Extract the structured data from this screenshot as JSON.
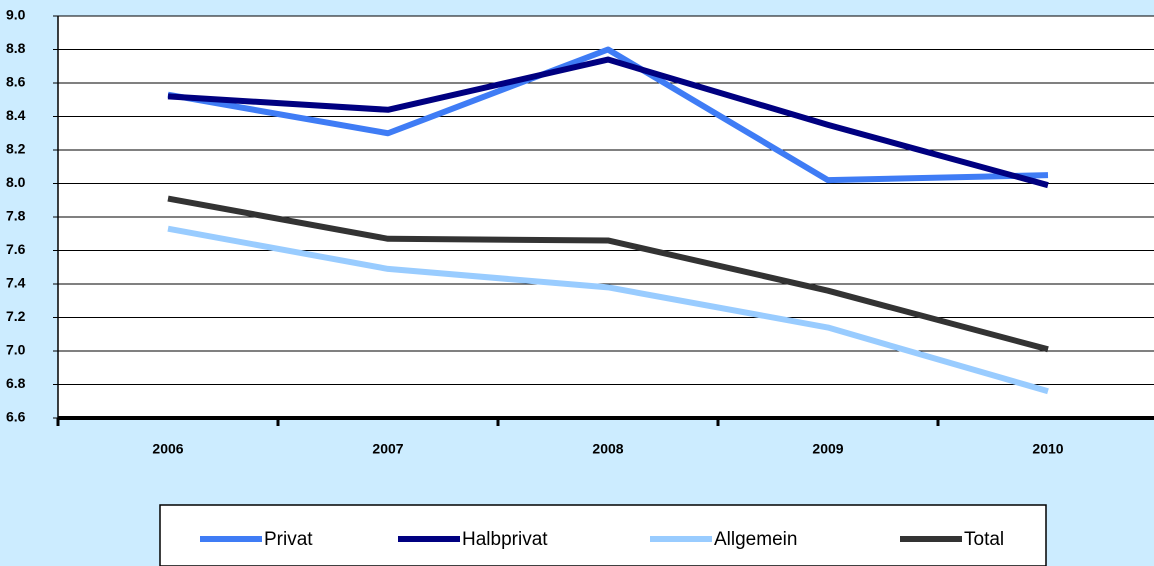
{
  "chart_data": {
    "type": "line",
    "categories": [
      "2006",
      "2007",
      "2008",
      "2009",
      "2010"
    ],
    "series": [
      {
        "name": "Privat",
        "color": "#3f7cf5",
        "values": [
          8.53,
          8.3,
          8.8,
          8.02,
          8.05
        ]
      },
      {
        "name": "Halbprivat",
        "color": "#000080",
        "values": [
          8.52,
          8.44,
          8.74,
          8.35,
          7.99
        ]
      },
      {
        "name": "Allgemein",
        "color": "#99ccff",
        "values": [
          7.73,
          7.49,
          7.38,
          7.14,
          6.76
        ]
      },
      {
        "name": "Total",
        "color": "#333333",
        "values": [
          7.91,
          7.67,
          7.66,
          7.36,
          7.01
        ]
      }
    ],
    "ylim": [
      6.6,
      9.0
    ],
    "yticks": [
      6.6,
      6.8,
      {
        "value": 7.0,
        "label": "7.0"
      },
      7.2,
      7.4,
      7.6,
      7.8,
      {
        "value": 8.0,
        "label": "8.0"
      },
      8.2,
      8.4,
      8.6,
      8.8,
      {
        "value": 9.0,
        "label": "9.0"
      }
    ],
    "grid": true,
    "legend": "bottom"
  }
}
